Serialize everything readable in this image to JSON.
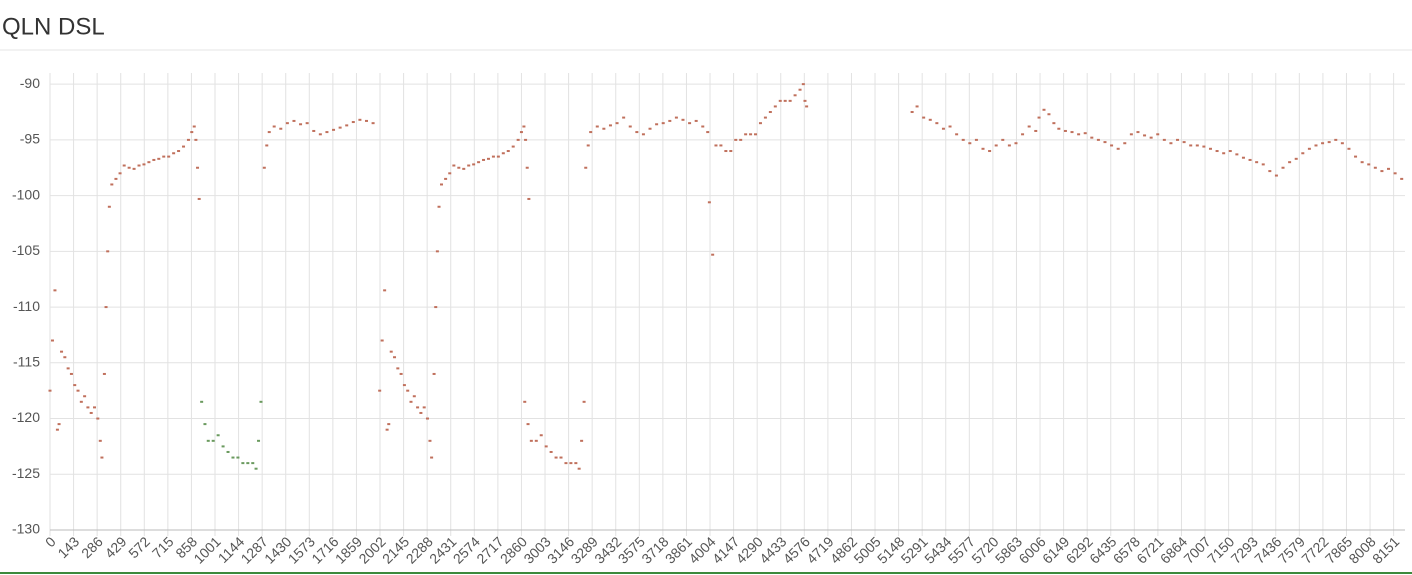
{
  "chart_data": {
    "type": "scatter",
    "title": "QLN DSL",
    "xlim": [
      0,
      8220
    ],
    "xticks": [
      0,
      143,
      286,
      429,
      572,
      715,
      858,
      1001,
      1144,
      1287,
      1430,
      1573,
      1716,
      1859,
      2002,
      2145,
      2288,
      2431,
      2574,
      2717,
      2860,
      3003,
      3146,
      3289,
      3432,
      3575,
      3718,
      3861,
      4004,
      4147,
      4290,
      4433,
      4576,
      4719,
      4862,
      5005,
      5148,
      5291,
      5434,
      5577,
      5720,
      5863,
      6006,
      6149,
      6292,
      6435,
      6578,
      6721,
      6864,
      7007,
      7150,
      7293,
      7436,
      7579,
      7722,
      7865,
      8008,
      8151
    ],
    "ylim": [
      -130,
      -89
    ],
    "yticks": [
      -90,
      -95,
      -100,
      -105,
      -110,
      -115,
      -120,
      -125,
      -130
    ],
    "grid": true,
    "series": [
      {
        "color": "#c0705c",
        "x": [
          0,
          15,
          30,
          45,
          55,
          70,
          90,
          110,
          130,
          150,
          170,
          190,
          210,
          230,
          250,
          270,
          290,
          305,
          315,
          330,
          340,
          350,
          360,
          375,
          400,
          425,
          450,
          480,
          510,
          540,
          570,
          600,
          630,
          660,
          690,
          720,
          750,
          780,
          810,
          840,
          860,
          875,
          885,
          895,
          905,
          1300,
          1315,
          1330,
          1360,
          1400,
          1440,
          1480,
          1520,
          1560,
          1600,
          1640,
          1680,
          1720,
          1760,
          1800,
          1840,
          1880,
          1920,
          1960,
          2000,
          2015,
          2030,
          2045,
          2055,
          2070,
          2090,
          2110,
          2130,
          2150,
          2170,
          2190,
          2210,
          2230,
          2250,
          2270,
          2290,
          2305,
          2315,
          2330,
          2340,
          2350,
          2360,
          2375,
          2400,
          2425,
          2450,
          2480,
          2510,
          2540,
          2570,
          2600,
          2630,
          2660,
          2690,
          2720,
          2750,
          2780,
          2810,
          2840,
          2860,
          2875,
          2885,
          2895,
          2905,
          2880,
          2900,
          2920,
          2950,
          2980,
          3010,
          3040,
          3070,
          3100,
          3130,
          3160,
          3190,
          3210,
          3225,
          3240,
          3250,
          3265,
          3280,
          3320,
          3360,
          3400,
          3440,
          3480,
          3520,
          3560,
          3600,
          3640,
          3680,
          3720,
          3760,
          3800,
          3840,
          3880,
          3920,
          3960,
          3990,
          4000,
          4020,
          4040,
          4070,
          4100,
          4130,
          4160,
          4190,
          4220,
          4250,
          4280,
          4310,
          4340,
          4370,
          4400,
          4430,
          4460,
          4490,
          4520,
          4550,
          4570,
          4580,
          4590,
          5230,
          5260,
          5300,
          5340,
          5380,
          5420,
          5460,
          5500,
          5540,
          5580,
          5620,
          5660,
          5700,
          5740,
          5780,
          5820,
          5860,
          5900,
          5940,
          5980,
          6000,
          6030,
          6060,
          6090,
          6120,
          6160,
          6200,
          6240,
          6280,
          6320,
          6360,
          6400,
          6440,
          6480,
          6520,
          6560,
          6600,
          6640,
          6680,
          6720,
          6760,
          6800,
          6840,
          6880,
          6920,
          6960,
          7000,
          7040,
          7080,
          7120,
          7160,
          7200,
          7240,
          7280,
          7320,
          7360,
          7400,
          7440,
          7480,
          7520,
          7560,
          7600,
          7640,
          7680,
          7720,
          7760,
          7800,
          7840,
          7880,
          7920,
          7960,
          8000,
          8040,
          8080,
          8120,
          8160,
          8200
        ],
        "values": [
          -117.5,
          -113,
          -108.5,
          -121,
          -120.5,
          -114,
          -114.5,
          -115.5,
          -116,
          -117,
          -117.5,
          -118.5,
          -118,
          -119,
          -119.5,
          -119,
          -120,
          -122,
          -123.5,
          -116,
          -110,
          -105,
          -101,
          -99,
          -98.5,
          -98,
          -97.3,
          -97.5,
          -97.6,
          -97.3,
          -97.2,
          -97,
          -96.8,
          -96.7,
          -96.5,
          -96.5,
          -96.2,
          -96,
          -95.6,
          -95,
          -94.3,
          -93.8,
          -95,
          -97.5,
          -100.3,
          -97.5,
          -95.5,
          -94.3,
          -93.8,
          -94,
          -93.5,
          -93.3,
          -93.6,
          -93.5,
          -94.2,
          -94.5,
          -94.3,
          -94.1,
          -93.9,
          -93.7,
          -93.4,
          -93.2,
          -93.3,
          -93.5,
          -117.5,
          -113,
          -108.5,
          -121,
          -120.5,
          -114,
          -114.5,
          -115.5,
          -116,
          -117,
          -117.5,
          -118.5,
          -118,
          -119,
          -119.5,
          -119,
          -120,
          -122,
          -123.5,
          -116,
          -110,
          -105,
          -101,
          -99,
          -98.5,
          -98,
          -97.3,
          -97.5,
          -97.6,
          -97.3,
          -97.2,
          -97,
          -96.8,
          -96.7,
          -96.5,
          -96.5,
          -96.2,
          -96,
          -95.6,
          -95,
          -94.3,
          -93.8,
          -95,
          -97.5,
          -100.3,
          -118.5,
          -120.5,
          -122,
          -122,
          -121.5,
          -122.5,
          -123,
          -123.5,
          -123.5,
          -124,
          -124,
          -124,
          -124.5,
          -122,
          -118.5,
          -97.5,
          -95.5,
          -94.3,
          -93.8,
          -94,
          -93.7,
          -93.5,
          -93,
          -93.8,
          -94.3,
          -94.5,
          -94,
          -93.6,
          -93.5,
          -93.3,
          -93,
          -93.2,
          -93.5,
          -93.3,
          -93.8,
          -94.3,
          -100.6,
          -105.3,
          -95.5,
          -95.5,
          -96,
          -96,
          -95,
          -95,
          -94.5,
          -94.5,
          -94.5,
          -93.5,
          -93,
          -92.5,
          -92,
          -91.5,
          -91.5,
          -91.5,
          -91,
          -90.5,
          -90,
          -91.5,
          -92,
          -92.5,
          -92,
          -93,
          -93.2,
          -93.5,
          -94,
          -93.8,
          -94.5,
          -95,
          -95.3,
          -95,
          -95.8,
          -96,
          -95.5,
          -95,
          -95.5,
          -95.3,
          -94.5,
          -93.8,
          -94.2,
          -93,
          -92.3,
          -92.7,
          -93.5,
          -94,
          -94.2,
          -94.3,
          -94.5,
          -94.4,
          -94.8,
          -95,
          -95.2,
          -95.5,
          -95.8,
          -95.3,
          -94.5,
          -94.3,
          -94.6,
          -94.8,
          -94.5,
          -95,
          -95.3,
          -95,
          -95.2,
          -95.5,
          -95.5,
          -95.6,
          -95.8,
          -96,
          -96.2,
          -96,
          -96.3,
          -96.6,
          -96.8,
          -97,
          -97.2,
          -97.8,
          -98.2,
          -97.5,
          -97,
          -96.7,
          -96.2,
          -95.8,
          -95.5,
          -95.3,
          -95.2,
          -95,
          -95.3,
          -95.8,
          -96.5,
          -97,
          -97.2,
          -97.5,
          -97.8,
          -97.6,
          -98,
          -98.5
        ]
      },
      {
        "color": "#6a9a5e",
        "x": [
          920,
          940,
          960,
          990,
          1020,
          1050,
          1080,
          1110,
          1140,
          1170,
          1200,
          1230,
          1250,
          1265,
          1280
        ],
        "values": [
          -118.5,
          -120.5,
          -122,
          -122,
          -121.5,
          -122.5,
          -123,
          -123.5,
          -123.5,
          -124,
          -124,
          -124,
          -124.5,
          -122,
          -118.5
        ]
      }
    ]
  }
}
